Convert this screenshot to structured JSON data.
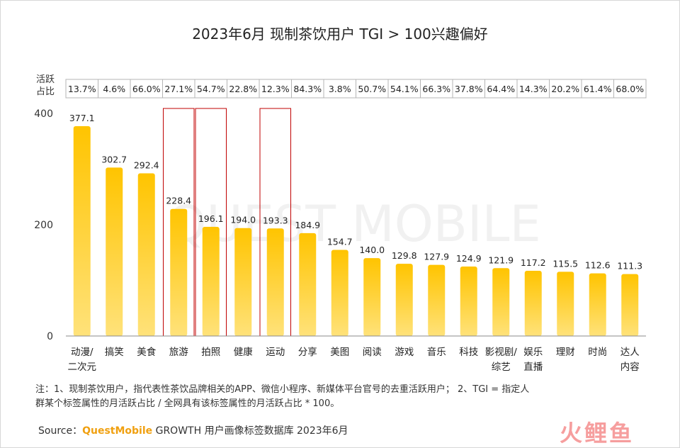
{
  "chart_data": {
    "type": "bar",
    "title": "2023年6月 现制茶饮用户 TGI > 100兴趣偏好",
    "categories": [
      "动漫/二次元",
      "搞笑",
      "美食",
      "旅游",
      "拍照",
      "健康",
      "运动",
      "分享",
      "美图",
      "阅读",
      "游戏",
      "音乐",
      "科技",
      "影视剧/综艺",
      "娱乐直播",
      "理财",
      "时尚",
      "达人内容"
    ],
    "category_lines": [
      [
        "动漫/",
        "二次元"
      ],
      [
        "搞笑"
      ],
      [
        "美食"
      ],
      [
        "旅游"
      ],
      [
        "拍照"
      ],
      [
        "健康"
      ],
      [
        "运动"
      ],
      [
        "分享"
      ],
      [
        "美图"
      ],
      [
        "阅读"
      ],
      [
        "游戏"
      ],
      [
        "音乐"
      ],
      [
        "科技"
      ],
      [
        "影视剧/",
        "综艺"
      ],
      [
        "娱乐",
        "直播"
      ],
      [
        "理财"
      ],
      [
        "时尚"
      ],
      [
        "达人",
        "内容"
      ]
    ],
    "values": [
      377.1,
      302.7,
      292.4,
      228.4,
      196.1,
      194.0,
      193.3,
      184.9,
      154.7,
      140.0,
      129.8,
      127.9,
      124.9,
      121.9,
      117.2,
      115.5,
      112.6,
      111.3
    ],
    "value_labels": [
      "377.1",
      "302.7",
      "292.4",
      "228.4",
      "196.1",
      "194.0",
      "193.3",
      "184.9",
      "154.7",
      "140.0",
      "129.8",
      "127.9",
      "124.9",
      "121.9",
      "117.2",
      "115.5",
      "112.6",
      "111.3"
    ],
    "activity_label": "活跃占比",
    "activity_label_lines": [
      "活跃",
      "占比"
    ],
    "activity": [
      "13.7%",
      "4.6%",
      "66.0%",
      "27.1%",
      "54.7%",
      "22.8%",
      "12.3%",
      "84.3%",
      "3.8%",
      "50.7%",
      "54.1%",
      "66.3%",
      "37.8%",
      "64.4%",
      "14.3%",
      "20.2%",
      "61.4%",
      "68.0%"
    ],
    "highlighted": [
      "旅游",
      "拍照",
      "运动"
    ],
    "ylim": [
      0,
      400
    ],
    "yticks": [
      "0",
      "200",
      "400"
    ],
    "xlabel": "",
    "ylabel": "",
    "grid": false,
    "bar_color_top": "#ffc400",
    "bar_color_bottom": "#ffe27a",
    "highlight_color": "#c00000"
  },
  "note_lines": [
    "注：1、现制茶饮用户，指代表性茶饮品牌相关的APP、微信小程序、新媒体平台官号的去重活跃用户； 2、TGI = 指定人",
    "群某个标签属性的月活跃占比 / 全网具有该标签属性的月活跃占比 * 100。"
  ],
  "source": {
    "prefix": "Source：",
    "brand": "QuestMobile",
    "rest": " GROWTH 用户画像标签数据库 2023年6月"
  },
  "watermark": "QUEST MOBILE",
  "logo_text": "火鲤鱼"
}
